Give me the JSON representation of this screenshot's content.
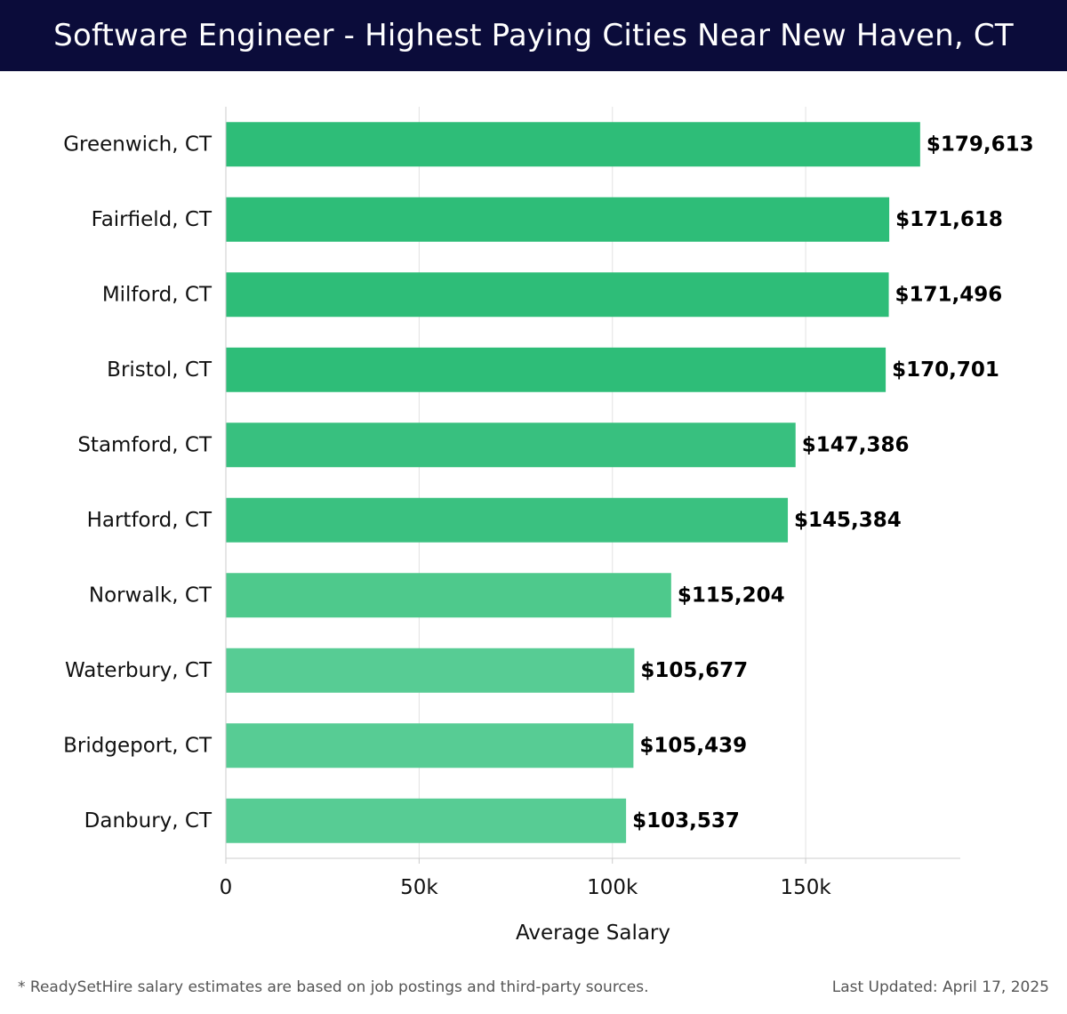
{
  "header": {
    "title": "Software Engineer - Highest Paying Cities Near New Haven, CT"
  },
  "chart_data": {
    "type": "bar",
    "orientation": "horizontal",
    "title": "Software Engineer - Highest Paying Cities Near New Haven, CT",
    "xlabel": "Average Salary",
    "ylabel": "",
    "xlim": [
      0,
      190000
    ],
    "xticks": [
      0,
      50000,
      100000,
      150000
    ],
    "xtick_labels": [
      "0",
      "50k",
      "100k",
      "150k"
    ],
    "grid": true,
    "categories": [
      "Greenwich, CT",
      "Fairfield, CT",
      "Milford, CT",
      "Bristol, CT",
      "Stamford, CT",
      "Hartford, CT",
      "Norwalk, CT",
      "Waterbury, CT",
      "Bridgeport, CT",
      "Danbury, CT"
    ],
    "values": [
      179613,
      171618,
      171496,
      170701,
      147386,
      145384,
      115204,
      105677,
      105439,
      103537
    ],
    "value_labels": [
      "$179,613",
      "$171,618",
      "$171,496",
      "$170,701",
      "$147,386",
      "$145,384",
      "$115,204",
      "$105,677",
      "$105,439",
      "$103,537"
    ],
    "colors": [
      "#2ebd78",
      "#2ebd78",
      "#2ebd78",
      "#2ebd78",
      "#38c07f",
      "#3ac180",
      "#4ec98c",
      "#57cc94",
      "#57cc94",
      "#57cc94"
    ],
    "gridline_color": "#e2e2e2",
    "axis_color": "#cccccc"
  },
  "footer": {
    "note": "* ReadySetHire salary estimates are based on job postings and third-party sources.",
    "updated": "Last Updated: April 17, 2025"
  }
}
